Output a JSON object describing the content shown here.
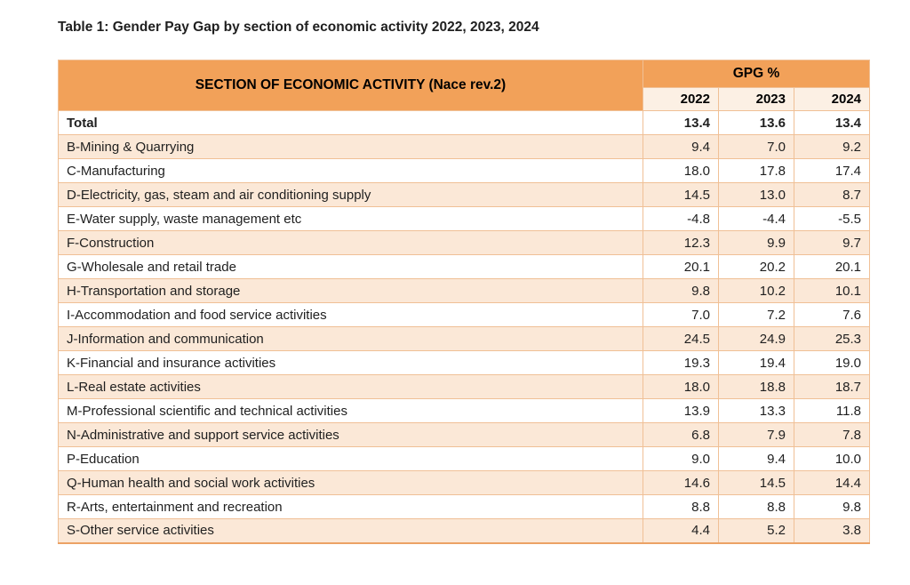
{
  "title": "Table 1: Gender Pay Gap by section of economic activity 2022, 2023, 2024",
  "table": {
    "header": {
      "activity_label": "SECTION OF ECONOMIC ACTIVITY (Nace rev.2)",
      "group_label": "GPG %",
      "years": [
        "2022",
        "2023",
        "2024"
      ]
    },
    "rows": [
      {
        "label": "Total",
        "values": [
          "13.4",
          "13.6",
          "13.4"
        ],
        "bold": true
      },
      {
        "label": "B-Mining & Quarrying",
        "values": [
          "9.4",
          "7.0",
          "9.2"
        ],
        "bold": false
      },
      {
        "label": "C-Manufacturing",
        "values": [
          "18.0",
          "17.8",
          "17.4"
        ],
        "bold": false
      },
      {
        "label": "D-Electricity, gas, steam and air conditioning supply",
        "values": [
          "14.5",
          "13.0",
          "8.7"
        ],
        "bold": false
      },
      {
        "label": "E-Water supply, waste management etc",
        "values": [
          "-4.8",
          "-4.4",
          "-5.5"
        ],
        "bold": false
      },
      {
        "label": "F-Construction",
        "values": [
          "12.3",
          "9.9",
          "9.7"
        ],
        "bold": false
      },
      {
        "label": "G-Wholesale and retail trade",
        "values": [
          "20.1",
          "20.2",
          "20.1"
        ],
        "bold": false
      },
      {
        "label": "H-Transportation and storage",
        "values": [
          "9.8",
          "10.2",
          "10.1"
        ],
        "bold": false
      },
      {
        "label": "I-Accommodation and food service activities",
        "values": [
          "7.0",
          "7.2",
          "7.6"
        ],
        "bold": false
      },
      {
        "label": "J-Information and communication",
        "values": [
          "24.5",
          "24.9",
          "25.3"
        ],
        "bold": false
      },
      {
        "label": "K-Financial and insurance activities",
        "values": [
          "19.3",
          "19.4",
          "19.0"
        ],
        "bold": false
      },
      {
        "label": "L-Real estate activities",
        "values": [
          "18.0",
          "18.8",
          "18.7"
        ],
        "bold": false
      },
      {
        "label": "M-Professional scientific and technical activities",
        "values": [
          "13.9",
          "13.3",
          "11.8"
        ],
        "bold": false
      },
      {
        "label": "N-Administrative and support service activities",
        "values": [
          "6.8",
          "7.9",
          "7.8"
        ],
        "bold": false
      },
      {
        "label": "P-Education",
        "values": [
          "9.0",
          "9.4",
          "10.0"
        ],
        "bold": false
      },
      {
        "label": "Q-Human health and social work activities",
        "values": [
          "14.6",
          "14.5",
          "14.4"
        ],
        "bold": false
      },
      {
        "label": "R-Arts, entertainment and recreation",
        "values": [
          "8.8",
          "8.8",
          "9.8"
        ],
        "bold": false
      },
      {
        "label": "S-Other service activities",
        "values": [
          "4.4",
          "5.2",
          "3.8"
        ],
        "bold": false
      }
    ],
    "colors": {
      "header_bg": "#F2A159",
      "year_cell_bg": "#FCF0E4",
      "row_bg": "#FFFFFF",
      "row_alt_bg": "#FBE8D7",
      "border": "#F0C096",
      "strong_border": "#ECA265",
      "text": "#1F1F1F",
      "page_bg": "#FFFFFF"
    }
  }
}
